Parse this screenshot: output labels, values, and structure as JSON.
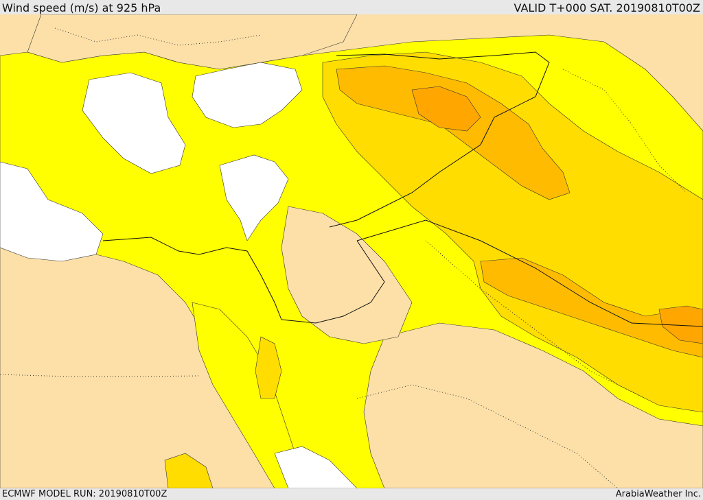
{
  "header": {
    "title": "Wind speed (m/s) at 925 hPa",
    "valid": "VALID T+000 SAT. 20190810T00Z"
  },
  "footer": {
    "model_run": "ECMWF MODEL RUN: 20190810T00Z",
    "credit": "ArabiaWeather Inc."
  },
  "map": {
    "field": "Wind speed (m/s) at 925 hPa",
    "colors": {
      "calm": "#ffffff",
      "low": "#fde0a8",
      "moderate": "#ffff00",
      "fresh": "#ffdd00",
      "strong": "#ffbb00",
      "very_strong": "#ffa600"
    }
  }
}
